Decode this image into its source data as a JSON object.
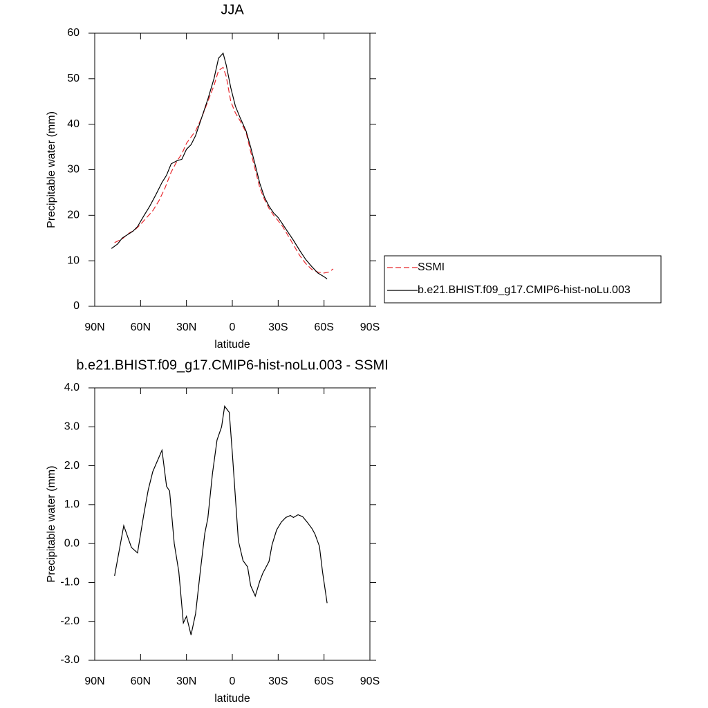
{
  "chart_data": [
    {
      "type": "line",
      "title": "JJA",
      "x_label": "latitude",
      "y_label": "Precipitable water (mm)",
      "xlim": [
        90,
        -90
      ],
      "xticks": [
        {
          "value": 90,
          "label": "90N"
        },
        {
          "value": 60,
          "label": "60N"
        },
        {
          "value": 30,
          "label": "30N"
        },
        0,
        {
          "value": -30,
          "label": "30S"
        },
        {
          "value": -60,
          "label": "60S"
        },
        {
          "value": -90,
          "label": "90S"
        }
      ],
      "ylim": [
        0,
        60
      ],
      "yticks": [
        0,
        10,
        20,
        30,
        40,
        50,
        60
      ],
      "legend": "right",
      "series": [
        {
          "name": "SSMI",
          "color": "#e8262b",
          "dashed": true,
          "x": [
            77,
            72,
            68,
            64,
            60,
            56,
            52,
            48,
            44,
            40,
            36,
            33,
            30,
            27,
            24,
            20,
            16,
            12,
            9,
            6,
            4,
            1,
            -2,
            -5,
            -9,
            -12,
            -15,
            -18,
            -21,
            -24,
            -27,
            -30,
            -33,
            -36,
            -40,
            -44,
            -48,
            -52,
            -56,
            -60,
            -63,
            -66
          ],
          "values": [
            14,
            14.8,
            16,
            16.7,
            18,
            19.5,
            21,
            23.2,
            26,
            29.5,
            32,
            33.5,
            35.8,
            37.2,
            38.5,
            41.5,
            45,
            48.5,
            51.8,
            52.5,
            50.5,
            45,
            42.5,
            40.8,
            38.2,
            34,
            30,
            26,
            23.5,
            21.5,
            20,
            18.8,
            17.5,
            15.8,
            13.5,
            11.2,
            9.4,
            8.1,
            7.5,
            7.3,
            7.5,
            8.2
          ]
        },
        {
          "name": "b.e21.BHIST.f09_g17.CMIP6-hist-noLu.003",
          "color": "#000000",
          "dashed": false,
          "x": [
            79,
            75,
            72,
            65,
            62,
            58,
            54,
            50,
            46,
            43,
            40,
            36,
            33,
            30,
            27,
            24,
            20,
            16,
            12,
            9,
            6,
            4,
            1,
            -2,
            -5,
            -9,
            -12,
            -15,
            -18,
            -21,
            -24,
            -27,
            -30,
            -33,
            -36,
            -40,
            -44,
            -48,
            -52,
            -56,
            -60,
            -62
          ],
          "values": [
            12.7,
            13.7,
            15,
            16.5,
            17.5,
            19.8,
            22,
            24.5,
            27.2,
            28.8,
            31.3,
            32,
            32.3,
            34.5,
            35.5,
            37.5,
            41.5,
            45.5,
            50,
            54.5,
            55.6,
            53,
            48,
            44,
            41.5,
            38.5,
            35,
            31,
            27,
            24,
            22,
            20.5,
            19.5,
            18,
            16.5,
            14.5,
            12.3,
            10.3,
            8.7,
            7.3,
            6.5,
            6
          ]
        }
      ]
    },
    {
      "type": "line",
      "title": "b.e21.BHIST.f09_g17.CMIP6-hist-noLu.003 - SSMI",
      "x_label": "latitude",
      "y_label": "Precipitable water (mm)",
      "xlim": [
        90,
        -90
      ],
      "xticks": [
        {
          "value": 90,
          "label": "90N"
        },
        {
          "value": 60,
          "label": "60N"
        },
        {
          "value": 30,
          "label": "30N"
        },
        0,
        {
          "value": -30,
          "label": "30S"
        },
        {
          "value": -60,
          "label": "60S"
        },
        {
          "value": -90,
          "label": "90S"
        }
      ],
      "ylim": [
        -3,
        4
      ],
      "yticks": [
        {
          "value": -3,
          "label": "-3.0"
        },
        {
          "value": -2,
          "label": "-2.0"
        },
        {
          "value": -1,
          "label": "-1.0"
        },
        {
          "value": 0,
          "label": "0.0"
        },
        {
          "value": 1,
          "label": "1.0"
        },
        {
          "value": 2,
          "label": "2.0"
        },
        {
          "value": 3,
          "label": "3.0"
        },
        {
          "value": 4,
          "label": "4.0"
        }
      ],
      "color": "#000000",
      "x": [
        77,
        71,
        66,
        62,
        58,
        55,
        52,
        46,
        43,
        41,
        38,
        35,
        32,
        30,
        27,
        24,
        21,
        18,
        16,
        13,
        10,
        7,
        5,
        2,
        0,
        -4,
        -7,
        -10,
        -12,
        -15,
        -18,
        -20,
        -24,
        -26,
        -29,
        -32,
        -35,
        -38,
        -40,
        -43,
        -46,
        -49,
        -52,
        -54,
        -57,
        -59,
        -62
      ],
      "values": [
        -0.83,
        0.46,
        -0.1,
        -0.24,
        0.73,
        1.38,
        1.85,
        2.4,
        1.47,
        1.35,
        0.0,
        -0.72,
        -2.04,
        -1.87,
        -2.35,
        -1.8,
        -0.73,
        0.26,
        0.65,
        1.8,
        2.66,
        3.0,
        3.53,
        3.37,
        2.33,
        0.07,
        -0.44,
        -0.6,
        -1.08,
        -1.35,
        -0.96,
        -0.76,
        -0.46,
        -0.03,
        0.35,
        0.55,
        0.67,
        0.72,
        0.67,
        0.74,
        0.69,
        0.55,
        0.39,
        0.25,
        -0.07,
        -0.73,
        -1.53
      ]
    }
  ]
}
